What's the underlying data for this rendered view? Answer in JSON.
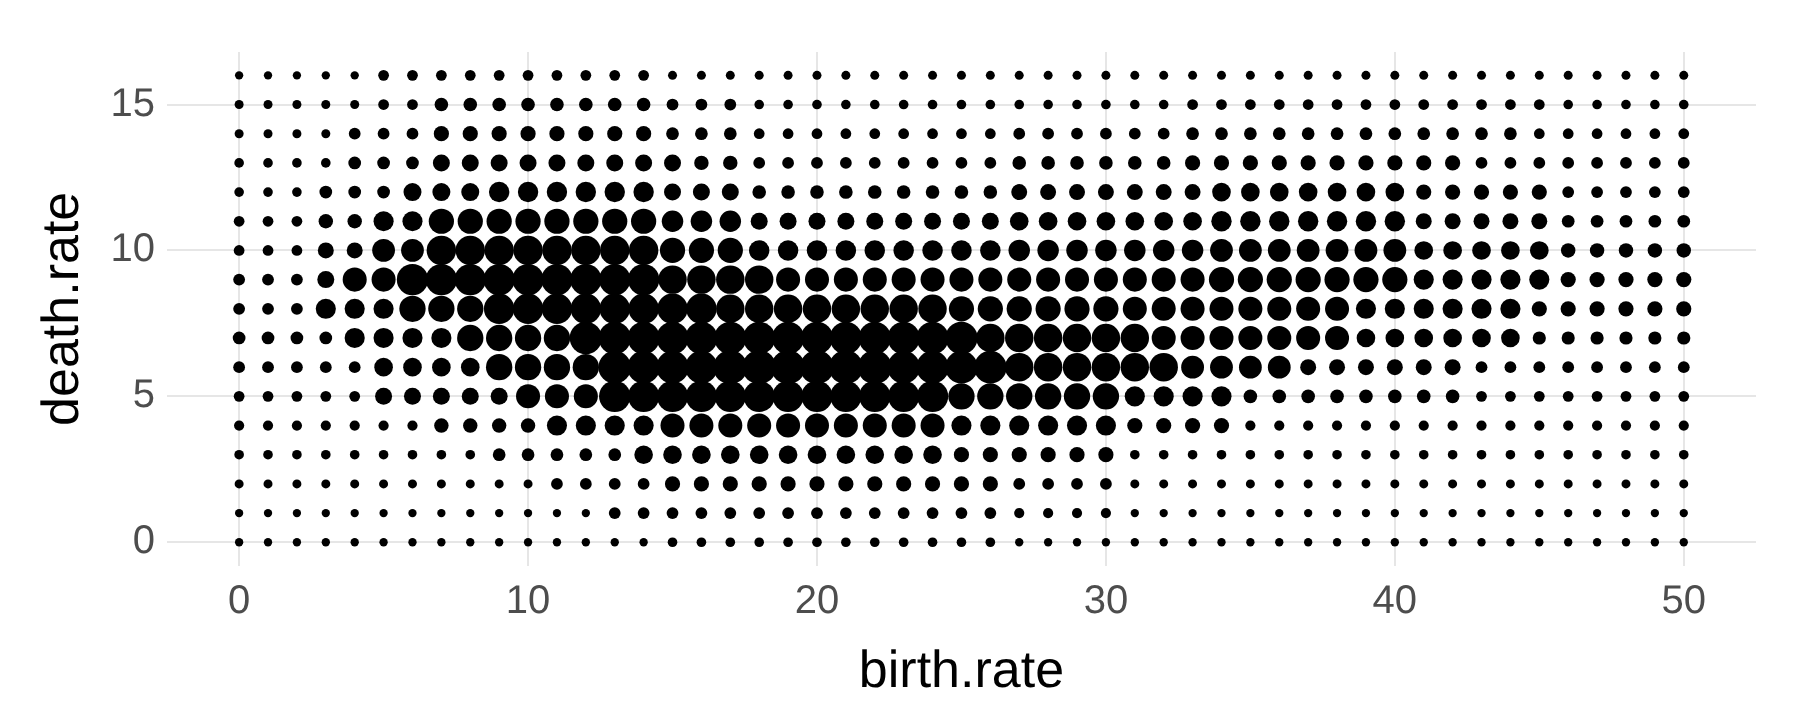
{
  "chart_data": {
    "type": "bubble",
    "xlabel": "birth.rate",
    "ylabel": "death.rate",
    "x": [
      0,
      1,
      2,
      3,
      4,
      5,
      6,
      7,
      8,
      9,
      10,
      11,
      12,
      13,
      14,
      15,
      16,
      17,
      18,
      19,
      20,
      21,
      22,
      23,
      24,
      25,
      26,
      27,
      28,
      29,
      30,
      31,
      32,
      33,
      34,
      35,
      36,
      37,
      38,
      39,
      40,
      41,
      42,
      43,
      44,
      45,
      46,
      47,
      48,
      49,
      50
    ],
    "xlim": [
      -2.5,
      52.5
    ],
    "ylim": [
      -0.8,
      16.8
    ],
    "xticks": [
      0,
      10,
      20,
      30,
      40,
      50
    ],
    "yticks": [
      0,
      5,
      10,
      15
    ],
    "grid": true,
    "series": [
      {
        "color": "#000000",
        "values": [
          0,
          0,
          0,
          0,
          0,
          0,
          0,
          0,
          0,
          0,
          0,
          0,
          0,
          0,
          0,
          0,
          0,
          0,
          0,
          0,
          0,
          0,
          0,
          0,
          0,
          0,
          0,
          0,
          0,
          0,
          0,
          0,
          0,
          0,
          0,
          0,
          0,
          0,
          0,
          0,
          0,
          0,
          0,
          0,
          0,
          0,
          0,
          0,
          0,
          0,
          0
        ],
        "sizes": [
          0.06,
          0.06,
          0.06,
          0.06,
          0.06,
          0.06,
          0.06,
          0.06,
          0.06,
          0.06,
          0.06,
          0.06,
          0.06,
          0.06,
          0.06,
          0.08,
          0.08,
          0.08,
          0.08,
          0.08,
          0.08,
          0.08,
          0.08,
          0.08,
          0.08,
          0.08,
          0.08,
          0.06,
          0.06,
          0.06,
          0.06,
          0.06,
          0.06,
          0.06,
          0.06,
          0.06,
          0.06,
          0.06,
          0.06,
          0.06,
          0.06,
          0.06,
          0.06,
          0.06,
          0.06,
          0.06,
          0.06,
          0.06,
          0.06,
          0.06,
          0.06
        ]
      },
      {
        "color": "#000000",
        "values": [
          1,
          1,
          1,
          1,
          1,
          1,
          1,
          1,
          1,
          1,
          1,
          1,
          1,
          1,
          1,
          1,
          1,
          1,
          1,
          1,
          1,
          1,
          1,
          1,
          1,
          1,
          1,
          1,
          1,
          1,
          1,
          1,
          1,
          1,
          1,
          1,
          1,
          1,
          1,
          1,
          1,
          1,
          1,
          1,
          1,
          1,
          1,
          1,
          1,
          1,
          1
        ],
        "sizes": [
          0.06,
          0.06,
          0.06,
          0.06,
          0.06,
          0.06,
          0.06,
          0.06,
          0.06,
          0.06,
          0.06,
          0.06,
          0.06,
          0.12,
          0.12,
          0.12,
          0.12,
          0.12,
          0.12,
          0.12,
          0.12,
          0.12,
          0.12,
          0.12,
          0.12,
          0.12,
          0.12,
          0.09,
          0.09,
          0.09,
          0.09,
          0.06,
          0.06,
          0.06,
          0.06,
          0.06,
          0.06,
          0.06,
          0.06,
          0.06,
          0.06,
          0.06,
          0.06,
          0.06,
          0.06,
          0.06,
          0.06,
          0.06,
          0.06,
          0.06,
          0.06
        ]
      },
      {
        "color": "#000000",
        "values": [
          2,
          2,
          2,
          2,
          2,
          2,
          2,
          2,
          2,
          2,
          2,
          2,
          2,
          2,
          2,
          2,
          2,
          2,
          2,
          2,
          2,
          2,
          2,
          2,
          2,
          2,
          2,
          2,
          2,
          2,
          2,
          2,
          2,
          2,
          2,
          2,
          2,
          2,
          2,
          2,
          2,
          2,
          2,
          2,
          2,
          2,
          2,
          2,
          2,
          2,
          2
        ],
        "sizes": [
          0.07,
          0.07,
          0.07,
          0.07,
          0.07,
          0.07,
          0.07,
          0.07,
          0.07,
          0.07,
          0.07,
          0.12,
          0.12,
          0.12,
          0.12,
          0.2,
          0.2,
          0.2,
          0.2,
          0.2,
          0.2,
          0.2,
          0.2,
          0.2,
          0.2,
          0.2,
          0.2,
          0.12,
          0.12,
          0.12,
          0.12,
          0.07,
          0.07,
          0.07,
          0.07,
          0.07,
          0.07,
          0.07,
          0.07,
          0.07,
          0.07,
          0.07,
          0.07,
          0.07,
          0.07,
          0.07,
          0.07,
          0.07,
          0.07,
          0.07,
          0.07
        ]
      },
      {
        "color": "#000000",
        "values": [
          3,
          3,
          3,
          3,
          3,
          3,
          3,
          3,
          3,
          3,
          3,
          3,
          3,
          3,
          3,
          3,
          3,
          3,
          3,
          3,
          3,
          3,
          3,
          3,
          3,
          3,
          3,
          3,
          3,
          3,
          3,
          3,
          3,
          3,
          3,
          3,
          3,
          3,
          3,
          3,
          3,
          3,
          3,
          3,
          3,
          3,
          3,
          3,
          3,
          3,
          3
        ],
        "sizes": [
          0.08,
          0.08,
          0.08,
          0.08,
          0.08,
          0.08,
          0.08,
          0.08,
          0.08,
          0.14,
          0.14,
          0.14,
          0.14,
          0.14,
          0.3,
          0.3,
          0.3,
          0.3,
          0.3,
          0.3,
          0.3,
          0.3,
          0.3,
          0.3,
          0.3,
          0.2,
          0.2,
          0.2,
          0.2,
          0.2,
          0.2,
          0.08,
          0.08,
          0.08,
          0.08,
          0.08,
          0.08,
          0.08,
          0.08,
          0.08,
          0.08,
          0.08,
          0.08,
          0.08,
          0.08,
          0.08,
          0.08,
          0.08,
          0.08,
          0.08,
          0.08
        ]
      },
      {
        "color": "#000000",
        "values": [
          4,
          4,
          4,
          4,
          4,
          4,
          4,
          4,
          4,
          4,
          4,
          4,
          4,
          4,
          4,
          4,
          4,
          4,
          4,
          4,
          4,
          4,
          4,
          4,
          4,
          4,
          4,
          4,
          4,
          4,
          4,
          4,
          4,
          4,
          4,
          4,
          4,
          4,
          4,
          4,
          4,
          4,
          4,
          4,
          4,
          4,
          4,
          4,
          4,
          4,
          4
        ],
        "sizes": [
          0.09,
          0.09,
          0.09,
          0.09,
          0.09,
          0.09,
          0.09,
          0.18,
          0.18,
          0.18,
          0.18,
          0.35,
          0.35,
          0.35,
          0.35,
          0.5,
          0.5,
          0.5,
          0.5,
          0.5,
          0.5,
          0.5,
          0.5,
          0.5,
          0.5,
          0.35,
          0.35,
          0.35,
          0.35,
          0.35,
          0.35,
          0.2,
          0.2,
          0.2,
          0.2,
          0.09,
          0.09,
          0.09,
          0.09,
          0.09,
          0.09,
          0.09,
          0.09,
          0.09,
          0.09,
          0.09,
          0.09,
          0.09,
          0.09,
          0.09,
          0.09
        ]
      },
      {
        "color": "#000000",
        "values": [
          5,
          5,
          5,
          5,
          5,
          5,
          5,
          5,
          5,
          5,
          5,
          5,
          5,
          5,
          5,
          5,
          5,
          5,
          5,
          5,
          5,
          5,
          5,
          5,
          5,
          5,
          5,
          5,
          5,
          5,
          5,
          5,
          5,
          5,
          5,
          5,
          5,
          5,
          5,
          5,
          5,
          5,
          5,
          5,
          5,
          5,
          5,
          5,
          5,
          5,
          5
        ],
        "sizes": [
          0.1,
          0.1,
          0.1,
          0.1,
          0.1,
          0.25,
          0.25,
          0.25,
          0.25,
          0.25,
          0.5,
          0.5,
          0.5,
          0.85,
          0.85,
          0.85,
          0.85,
          0.85,
          0.85,
          0.85,
          0.85,
          0.85,
          0.85,
          0.85,
          0.85,
          0.6,
          0.6,
          0.6,
          0.6,
          0.6,
          0.6,
          0.35,
          0.35,
          0.35,
          0.35,
          0.16,
          0.16,
          0.16,
          0.16,
          0.16,
          0.16,
          0.16,
          0.16,
          0.1,
          0.1,
          0.1,
          0.1,
          0.1,
          0.1,
          0.1,
          0.1
        ]
      },
      {
        "color": "#000000",
        "values": [
          6,
          6,
          6,
          6,
          6,
          6,
          6,
          6,
          6,
          6,
          6,
          6,
          6,
          6,
          6,
          6,
          6,
          6,
          6,
          6,
          6,
          6,
          6,
          6,
          6,
          6,
          6,
          6,
          6,
          6,
          6,
          6,
          6,
          6,
          6,
          6,
          6,
          6,
          6,
          6,
          6,
          6,
          6,
          6,
          6,
          6,
          6,
          6,
          6,
          6,
          6
        ],
        "sizes": [
          0.12,
          0.12,
          0.12,
          0.12,
          0.12,
          0.3,
          0.3,
          0.3,
          0.3,
          0.6,
          0.6,
          0.6,
          0.6,
          0.92,
          0.92,
          0.92,
          0.92,
          1,
          1,
          1,
          1,
          1,
          1,
          0.92,
          0.92,
          0.92,
          0.92,
          0.7,
          0.7,
          0.7,
          0.7,
          0.7,
          0.7,
          0.45,
          0.45,
          0.45,
          0.45,
          0.22,
          0.22,
          0.22,
          0.22,
          0.22,
          0.22,
          0.12,
          0.12,
          0.12,
          0.12,
          0.12,
          0.12,
          0.12,
          0.12
        ]
      },
      {
        "color": "#000000",
        "values": [
          7,
          7,
          7,
          7,
          7,
          7,
          7,
          7,
          7,
          7,
          7,
          7,
          7,
          7,
          7,
          7,
          7,
          7,
          7,
          7,
          7,
          7,
          7,
          7,
          7,
          7,
          7,
          7,
          7,
          7,
          7,
          7,
          7,
          7,
          7,
          7,
          7,
          7,
          7,
          7,
          7,
          7,
          7,
          7,
          7,
          7,
          7,
          7,
          7,
          7,
          7
        ],
        "sizes": [
          0.14,
          0.14,
          0.14,
          0.14,
          0.35,
          0.35,
          0.35,
          0.35,
          0.6,
          0.6,
          0.6,
          0.6,
          0.9,
          0.9,
          0.9,
          0.9,
          0.9,
          0.9,
          0.9,
          0.9,
          0.9,
          0.9,
          0.9,
          0.9,
          0.9,
          0.9,
          0.7,
          0.7,
          0.7,
          0.7,
          0.7,
          0.7,
          0.5,
          0.5,
          0.5,
          0.5,
          0.5,
          0.5,
          0.5,
          0.3,
          0.3,
          0.3,
          0.3,
          0.3,
          0.3,
          0.15,
          0.15,
          0.15,
          0.15,
          0.15,
          0.15
        ]
      },
      {
        "color": "#000000",
        "values": [
          8,
          8,
          8,
          8,
          8,
          8,
          8,
          8,
          8,
          8,
          8,
          8,
          8,
          8,
          8,
          8,
          8,
          8,
          8,
          8,
          8,
          8,
          8,
          8,
          8,
          8,
          8,
          8,
          8,
          8,
          8,
          8,
          8,
          8,
          8,
          8,
          8,
          8,
          8,
          8,
          8,
          8,
          8,
          8,
          8,
          8,
          8,
          8,
          8,
          8,
          8
        ],
        "sizes": [
          0.12,
          0.12,
          0.12,
          0.35,
          0.35,
          0.35,
          0.6,
          0.6,
          0.6,
          0.8,
          0.8,
          0.8,
          0.8,
          0.8,
          0.8,
          0.8,
          0.8,
          0.7,
          0.7,
          0.7,
          0.7,
          0.7,
          0.7,
          0.7,
          0.7,
          0.55,
          0.55,
          0.55,
          0.55,
          0.55,
          0.55,
          0.5,
          0.5,
          0.5,
          0.5,
          0.5,
          0.5,
          0.5,
          0.5,
          0.35,
          0.35,
          0.35,
          0.35,
          0.35,
          0.35,
          0.2,
          0.2,
          0.2,
          0.2,
          0.2,
          0.2
        ]
      },
      {
        "color": "#000000",
        "values": [
          9,
          9,
          9,
          9,
          9,
          9,
          9,
          9,
          9,
          9,
          9,
          9,
          9,
          9,
          9,
          9,
          9,
          9,
          9,
          9,
          9,
          9,
          9,
          9,
          9,
          9,
          9,
          9,
          9,
          9,
          9,
          9,
          9,
          9,
          9,
          9,
          9,
          9,
          9,
          9,
          9,
          9,
          9,
          9,
          9,
          9,
          9,
          9,
          9,
          9,
          9
        ],
        "sizes": [
          0.12,
          0.12,
          0.12,
          0.25,
          0.5,
          0.5,
          0.85,
          0.85,
          0.85,
          0.85,
          0.85,
          0.85,
          0.85,
          0.85,
          0.85,
          0.7,
          0.7,
          0.7,
          0.7,
          0.5,
          0.5,
          0.5,
          0.5,
          0.5,
          0.5,
          0.5,
          0.5,
          0.5,
          0.5,
          0.5,
          0.5,
          0.5,
          0.5,
          0.5,
          0.55,
          0.55,
          0.55,
          0.55,
          0.55,
          0.55,
          0.55,
          0.35,
          0.35,
          0.35,
          0.35,
          0.35,
          0.2,
          0.2,
          0.2,
          0.2,
          0.2
        ]
      },
      {
        "color": "#000000",
        "values": [
          10,
          10,
          10,
          10,
          10,
          10,
          10,
          10,
          10,
          10,
          10,
          10,
          10,
          10,
          10,
          10,
          10,
          10,
          10,
          10,
          10,
          10,
          10,
          10,
          10,
          10,
          10,
          10,
          10,
          10,
          10,
          10,
          10,
          10,
          10,
          10,
          10,
          10,
          10,
          10,
          10,
          10,
          10,
          10,
          10,
          10,
          10,
          10,
          10,
          10,
          10
        ],
        "sizes": [
          0.1,
          0.1,
          0.1,
          0.22,
          0.22,
          0.45,
          0.45,
          0.75,
          0.75,
          0.75,
          0.75,
          0.75,
          0.75,
          0.75,
          0.75,
          0.55,
          0.55,
          0.55,
          0.36,
          0.36,
          0.36,
          0.36,
          0.36,
          0.36,
          0.36,
          0.36,
          0.36,
          0.4,
          0.4,
          0.4,
          0.4,
          0.4,
          0.4,
          0.4,
          0.45,
          0.45,
          0.45,
          0.45,
          0.45,
          0.45,
          0.45,
          0.3,
          0.3,
          0.3,
          0.3,
          0.3,
          0.18,
          0.18,
          0.18,
          0.18,
          0.18
        ]
      },
      {
        "color": "#000000",
        "values": [
          11,
          11,
          11,
          11,
          11,
          11,
          11,
          11,
          11,
          11,
          11,
          11,
          11,
          11,
          11,
          11,
          11,
          11,
          11,
          11,
          11,
          11,
          11,
          11,
          11,
          11,
          11,
          11,
          11,
          11,
          11,
          11,
          11,
          11,
          11,
          11,
          11,
          11,
          11,
          11,
          11,
          11,
          11,
          11,
          11,
          11,
          11,
          11,
          11,
          11,
          11
        ],
        "sizes": [
          0.1,
          0.1,
          0.1,
          0.18,
          0.18,
          0.35,
          0.35,
          0.55,
          0.55,
          0.55,
          0.55,
          0.55,
          0.55,
          0.55,
          0.55,
          0.4,
          0.4,
          0.4,
          0.25,
          0.25,
          0.25,
          0.25,
          0.25,
          0.25,
          0.25,
          0.25,
          0.25,
          0.3,
          0.3,
          0.3,
          0.3,
          0.3,
          0.3,
          0.3,
          0.36,
          0.36,
          0.36,
          0.36,
          0.36,
          0.36,
          0.36,
          0.22,
          0.22,
          0.22,
          0.22,
          0.22,
          0.14,
          0.14,
          0.14,
          0.14,
          0.14
        ]
      },
      {
        "color": "#000000",
        "values": [
          12,
          12,
          12,
          12,
          12,
          12,
          12,
          12,
          12,
          12,
          12,
          12,
          12,
          12,
          12,
          12,
          12,
          12,
          12,
          12,
          12,
          12,
          12,
          12,
          12,
          12,
          12,
          12,
          12,
          12,
          12,
          12,
          12,
          12,
          12,
          12,
          12,
          12,
          12,
          12,
          12,
          12,
          12,
          12,
          12,
          12,
          12,
          12,
          12,
          12,
          12
        ],
        "sizes": [
          0.08,
          0.08,
          0.08,
          0.14,
          0.14,
          0.14,
          0.28,
          0.28,
          0.28,
          0.36,
          0.36,
          0.36,
          0.36,
          0.36,
          0.36,
          0.25,
          0.25,
          0.25,
          0.16,
          0.16,
          0.16,
          0.16,
          0.16,
          0.16,
          0.16,
          0.16,
          0.16,
          0.22,
          0.22,
          0.22,
          0.22,
          0.22,
          0.22,
          0.22,
          0.3,
          0.3,
          0.3,
          0.3,
          0.3,
          0.3,
          0.3,
          0.2,
          0.2,
          0.2,
          0.2,
          0.2,
          0.12,
          0.12,
          0.12,
          0.12,
          0.12
        ]
      },
      {
        "color": "#000000",
        "values": [
          13,
          13,
          13,
          13,
          13,
          13,
          13,
          13,
          13,
          13,
          13,
          13,
          13,
          13,
          13,
          13,
          13,
          13,
          13,
          13,
          13,
          13,
          13,
          13,
          13,
          13,
          13,
          13,
          13,
          13,
          13,
          13,
          13,
          13,
          13,
          13,
          13,
          13,
          13,
          13,
          13,
          13,
          13,
          13,
          13,
          13,
          13,
          13,
          13,
          13,
          13
        ],
        "sizes": [
          0.08,
          0.08,
          0.08,
          0.08,
          0.14,
          0.14,
          0.14,
          0.25,
          0.25,
          0.25,
          0.25,
          0.25,
          0.25,
          0.25,
          0.25,
          0.25,
          0.18,
          0.18,
          0.12,
          0.12,
          0.12,
          0.12,
          0.12,
          0.12,
          0.12,
          0.12,
          0.12,
          0.16,
          0.16,
          0.16,
          0.16,
          0.16,
          0.16,
          0.2,
          0.2,
          0.2,
          0.2,
          0.2,
          0.2,
          0.2,
          0.2,
          0.2,
          0.2,
          0.12,
          0.12,
          0.12,
          0.12,
          0.12,
          0.12,
          0.12,
          0.12
        ]
      },
      {
        "color": "#000000",
        "values": [
          14,
          14,
          14,
          14,
          14,
          14,
          14,
          14,
          14,
          14,
          14,
          14,
          14,
          14,
          14,
          14,
          14,
          14,
          14,
          14,
          14,
          14,
          14,
          14,
          14,
          14,
          14,
          14,
          14,
          14,
          14,
          14,
          14,
          14,
          14,
          14,
          14,
          14,
          14,
          14,
          14,
          14,
          14,
          14,
          14,
          14,
          14,
          14,
          14,
          14,
          14
        ],
        "sizes": [
          0.07,
          0.07,
          0.07,
          0.07,
          0.12,
          0.12,
          0.12,
          0.2,
          0.2,
          0.2,
          0.2,
          0.2,
          0.2,
          0.2,
          0.2,
          0.14,
          0.14,
          0.14,
          0.1,
          0.1,
          0.1,
          0.1,
          0.1,
          0.1,
          0.1,
          0.1,
          0.1,
          0.12,
          0.12,
          0.12,
          0.12,
          0.12,
          0.12,
          0.14,
          0.14,
          0.14,
          0.14,
          0.14,
          0.14,
          0.14,
          0.14,
          0.14,
          0.14,
          0.14,
          0.14,
          0.1,
          0.1,
          0.1,
          0.1,
          0.1,
          0.1
        ]
      },
      {
        "color": "#000000",
        "values": [
          15,
          15,
          15,
          15,
          15,
          15,
          15,
          15,
          15,
          15,
          15,
          15,
          15,
          15,
          15,
          15,
          15,
          15,
          15,
          15,
          15,
          15,
          15,
          15,
          15,
          15,
          15,
          15,
          15,
          15,
          15,
          15,
          15,
          15,
          15,
          15,
          15,
          15,
          15,
          15,
          15,
          15,
          15,
          15,
          15,
          15,
          15,
          15,
          15,
          15,
          15
        ],
        "sizes": [
          0.07,
          0.07,
          0.07,
          0.07,
          0.07,
          0.1,
          0.1,
          0.16,
          0.16,
          0.16,
          0.16,
          0.16,
          0.16,
          0.16,
          0.16,
          0.12,
          0.12,
          0.12,
          0.08,
          0.08,
          0.08,
          0.08,
          0.08,
          0.08,
          0.08,
          0.08,
          0.08,
          0.08,
          0.08,
          0.08,
          0.08,
          0.08,
          0.08,
          0.1,
          0.1,
          0.1,
          0.1,
          0.1,
          0.1,
          0.1,
          0.1,
          0.1,
          0.1,
          0.1,
          0.1,
          0.1,
          0.08,
          0.08,
          0.08,
          0.08,
          0.08
        ]
      },
      {
        "color": "#000000",
        "values": [
          16,
          16,
          16,
          16,
          16,
          16,
          16,
          16,
          16,
          16,
          16,
          16,
          16,
          16,
          16,
          16,
          16,
          16,
          16,
          16,
          16,
          16,
          16,
          16,
          16,
          16,
          16,
          16,
          16,
          16,
          16,
          16,
          16,
          16,
          16,
          16,
          16,
          16,
          16,
          16,
          16,
          16,
          16,
          16,
          16,
          16,
          16,
          16,
          16,
          16,
          16
        ],
        "sizes": [
          0.06,
          0.06,
          0.06,
          0.06,
          0.06,
          0.1,
          0.1,
          0.1,
          0.1,
          0.1,
          0.1,
          0.1,
          0.1,
          0.1,
          0.1,
          0.07,
          0.07,
          0.07,
          0.07,
          0.07,
          0.07,
          0.07,
          0.07,
          0.07,
          0.07,
          0.07,
          0.07,
          0.07,
          0.07,
          0.07,
          0.07,
          0.07,
          0.07,
          0.07,
          0.07,
          0.07,
          0.07,
          0.07,
          0.07,
          0.07,
          0.07,
          0.07,
          0.07,
          0.07,
          0.07,
          0.07,
          0.07,
          0.07,
          0.07,
          0.07,
          0.07
        ]
      }
    ]
  }
}
